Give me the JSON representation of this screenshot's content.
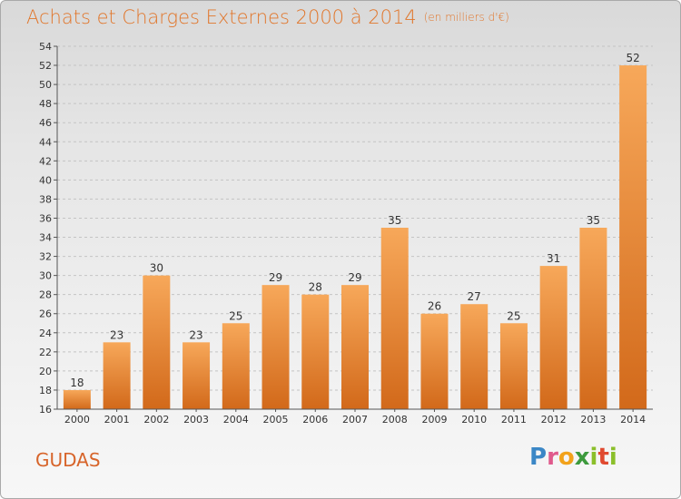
{
  "header": {
    "title": "Achats et Charges Externes 2000 à 2014",
    "subtitle": "(en milliers d'€)"
  },
  "footer": {
    "commune": "GUDAS",
    "logo_text": "Proxiti"
  },
  "colors": {
    "bar_top": "#f7a85a",
    "bar_bottom": "#d2691a",
    "title": "#e1762b"
  },
  "chart_data": {
    "type": "bar",
    "title": "Achats et Charges Externes 2000 à 2014",
    "subtitle": "(en milliers d'€)",
    "xlabel": "",
    "ylabel": "",
    "categories": [
      "2000",
      "2001",
      "2002",
      "2003",
      "2004",
      "2005",
      "2006",
      "2007",
      "2008",
      "2009",
      "2010",
      "2011",
      "2012",
      "2013",
      "2014"
    ],
    "values": [
      18,
      23,
      30,
      23,
      25,
      29,
      28,
      29,
      35,
      26,
      27,
      25,
      31,
      35,
      52
    ],
    "ylim": [
      16,
      54
    ],
    "yticks": [
      16,
      18,
      20,
      22,
      24,
      26,
      28,
      30,
      32,
      34,
      36,
      38,
      40,
      42,
      44,
      46,
      48,
      50,
      52,
      54
    ],
    "grid": true,
    "legend": "none"
  }
}
